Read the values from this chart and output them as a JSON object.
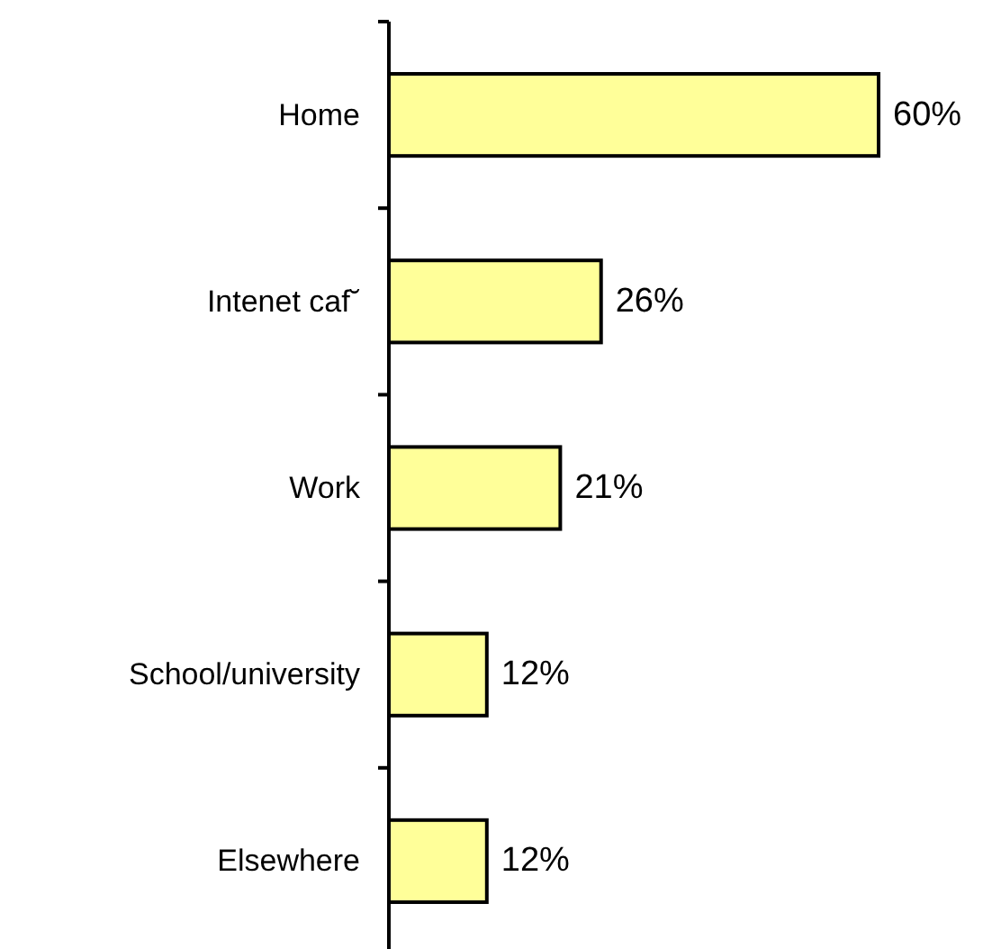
{
  "chart_data": {
    "type": "bar",
    "orientation": "horizontal",
    "categories": [
      "Home",
      "Intenet caf˘",
      "Work",
      "School/university",
      "Elsewhere"
    ],
    "values": [
      60,
      26,
      21,
      12,
      12
    ],
    "value_labels": [
      "60%",
      "26%",
      "21%",
      "12%",
      "12%"
    ],
    "color": "#ffff99"
  }
}
